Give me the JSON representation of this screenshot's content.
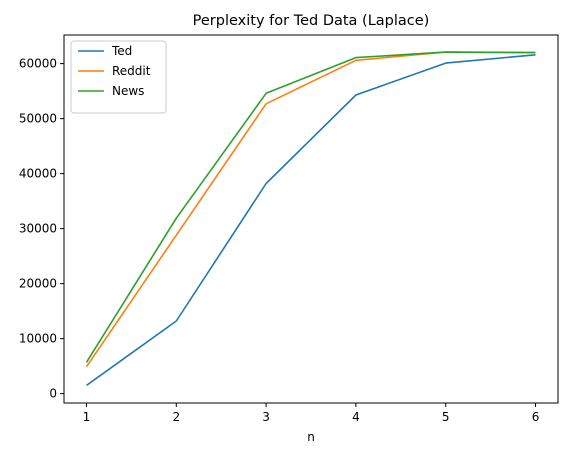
{
  "chart_data": {
    "type": "line",
    "title": "Perplexity for Ted Data (Laplace)",
    "xlabel": "n",
    "ylabel": "",
    "x": [
      1,
      2,
      3,
      4,
      5,
      6
    ],
    "xticks": [
      1,
      2,
      3,
      4,
      5,
      6
    ],
    "yticks": [
      0,
      10000,
      20000,
      30000,
      40000,
      50000,
      60000
    ],
    "xlim": [
      0.75,
      6.25
    ],
    "ylim": [
      -1700,
      65200
    ],
    "grid": false,
    "legend_position": "top-left",
    "series": [
      {
        "name": "Ted",
        "color": "#1f77b4",
        "values": [
          1500,
          13200,
          38200,
          54300,
          60100,
          61600
        ]
      },
      {
        "name": "Reddit",
        "color": "#ff7f0e",
        "values": [
          4900,
          28800,
          52700,
          60600,
          62100,
          62000
        ]
      },
      {
        "name": "News",
        "color": "#2ca02c",
        "values": [
          5700,
          31900,
          54600,
          61100,
          62100,
          62000
        ]
      }
    ]
  }
}
